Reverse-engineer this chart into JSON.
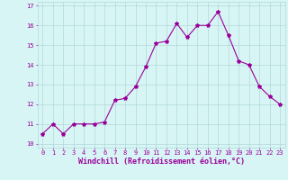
{
  "x": [
    0,
    1,
    2,
    3,
    4,
    5,
    6,
    7,
    8,
    9,
    10,
    11,
    12,
    13,
    14,
    15,
    16,
    17,
    18,
    19,
    20,
    21,
    22,
    23
  ],
  "y": [
    10.5,
    11.0,
    10.5,
    11.0,
    11.0,
    11.0,
    11.1,
    12.2,
    12.3,
    12.9,
    13.9,
    15.1,
    15.2,
    16.1,
    15.4,
    16.0,
    16.0,
    16.7,
    15.5,
    14.2,
    14.0,
    12.9,
    12.4,
    12.0
  ],
  "line_color": "#990099",
  "marker": "*",
  "marker_size": 3,
  "bg_color": "#d8f5f5",
  "grid_color": "#b0d8d8",
  "xlabel": "Windchill (Refroidissement éolien,°C)",
  "ylabel": "",
  "ylim": [
    9.8,
    17.2
  ],
  "xlim": [
    -0.5,
    23.5
  ],
  "yticks": [
    10,
    11,
    12,
    13,
    14,
    15,
    16,
    17
  ],
  "xticks": [
    0,
    1,
    2,
    3,
    4,
    5,
    6,
    7,
    8,
    9,
    10,
    11,
    12,
    13,
    14,
    15,
    16,
    17,
    18,
    19,
    20,
    21,
    22,
    23
  ],
  "tick_color": "#990099",
  "label_color": "#990099",
  "tick_fontsize": 5,
  "xlabel_fontsize": 6,
  "linewidth": 0.8
}
